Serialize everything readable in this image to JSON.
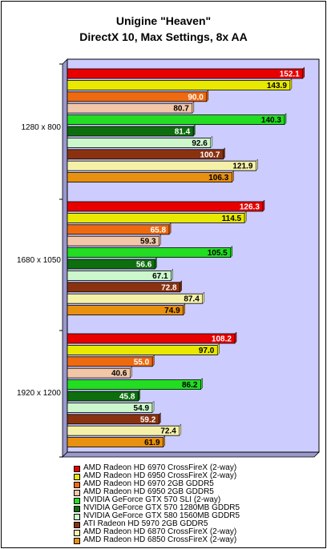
{
  "chart_data": {
    "type": "bar",
    "orientation": "horizontal",
    "title": "Unigine \"Heaven\"",
    "subtitle": "DirectX 10, Max Settings, 8x AA",
    "categories": [
      "1280 x 800",
      "1680 x 1050",
      "1920 x 1200"
    ],
    "xlim": [
      0,
      160
    ],
    "grid": false,
    "plot_background": "#ccccff",
    "legend_position": "bottom",
    "series": [
      {
        "name": "AMD Radeon HD 6970 CrossFireX (2-way)",
        "color": "#e80000",
        "values": [
          152.1,
          126.3,
          108.2
        ],
        "labels": [
          "152.1",
          "126.3",
          "108.2"
        ],
        "label_color": "#ffffff"
      },
      {
        "name": "AMD Radeon HD 6950 CrossFireX (2-way)",
        "color": "#e8e800",
        "values": [
          143.9,
          114.5,
          97.0
        ],
        "labels": [
          "143.9",
          "114.5",
          "97.0"
        ],
        "label_color": "#000000"
      },
      {
        "name": "AMD Radeon HD 6970 2GB GDDR5",
        "color": "#ee6a10",
        "values": [
          90.0,
          65.8,
          55.0
        ],
        "labels": [
          "90.0",
          "65.8",
          "55.0"
        ],
        "label_color": "#ffffff"
      },
      {
        "name": "AMD Radeon HD 6950 2GB GDDR5",
        "color": "#f2c6a8",
        "values": [
          80.7,
          59.3,
          40.6
        ],
        "labels": [
          "80.7",
          "59.3",
          "40.6"
        ],
        "label_color": "#000000"
      },
      {
        "name": "NVIDIA GeForce GTX 570 SLI (2-way)",
        "color": "#22dd22",
        "values": [
          140.3,
          105.5,
          86.2
        ],
        "labels": [
          "140.3",
          "105.5",
          "86.2"
        ],
        "label_color": "#000000"
      },
      {
        "name": "NVIDIA GeForce GTX 570 1280MB GDDR5",
        "color": "#0e6e0e",
        "values": [
          81.4,
          56.6,
          45.8
        ],
        "labels": [
          "81.4",
          "56.6",
          "45.8"
        ],
        "label_color": "#ffffff"
      },
      {
        "name": "NVIDIA GeForce GTX 580 1560MB GDDR5",
        "color": "#ccf6cc",
        "values": [
          92.6,
          67.1,
          54.9
        ],
        "labels": [
          "92.6",
          "67.1",
          "54.9"
        ],
        "label_color": "#000000"
      },
      {
        "name": "ATI Radeon HD 5970 2GB GDDR5",
        "color": "#8a3210",
        "values": [
          100.7,
          72.8,
          59.2
        ],
        "labels": [
          "100.7",
          "72.8",
          "59.2"
        ],
        "label_color": "#ffffff"
      },
      {
        "name": "AMD Radeon HD 6870 CrossFireX (2-way)",
        "color": "#f4f0a8",
        "values": [
          121.9,
          87.4,
          72.4
        ],
        "labels": [
          "121.9",
          "87.4",
          "72.4"
        ],
        "label_color": "#000000"
      },
      {
        "name": "AMD Radeon HD 6850 CrossFireX (2-way)",
        "color": "#e89010",
        "values": [
          106.3,
          74.9,
          61.9
        ],
        "labels": [
          "106.3",
          "74.9",
          "61.9"
        ],
        "label_color": "#000000"
      }
    ]
  }
}
